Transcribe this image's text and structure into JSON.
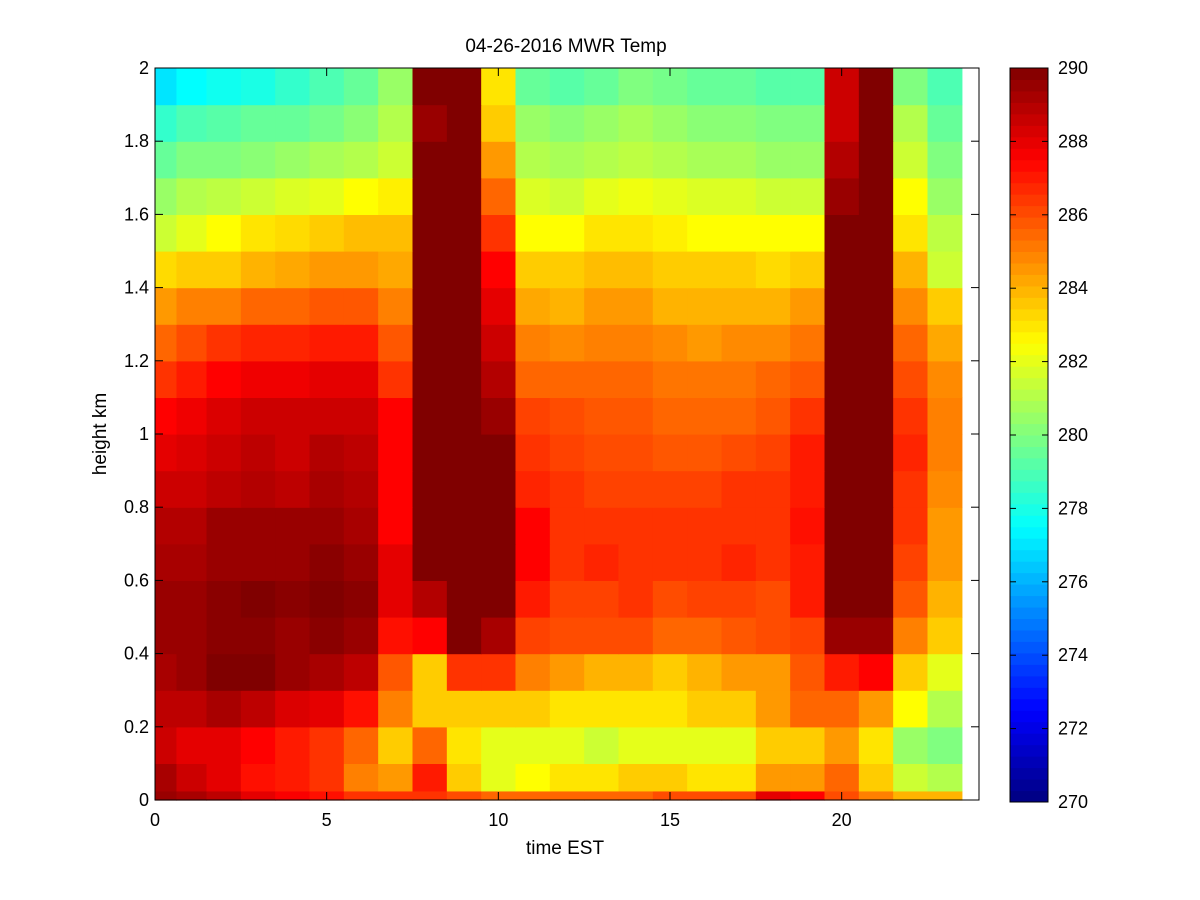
{
  "chart_data": {
    "type": "heatmap",
    "title": "04-26-2016 MWR Temp",
    "xlabel": "time EST",
    "ylabel": "height km",
    "xlim": [
      0,
      24
    ],
    "ylim": [
      0,
      2
    ],
    "xticks": [
      0,
      5,
      10,
      15,
      20
    ],
    "yticks": [
      0,
      0.2,
      0.4,
      0.6,
      0.8,
      1,
      1.2,
      1.4,
      1.6,
      1.8,
      2
    ],
    "colorbar": {
      "min": 270,
      "max": 290,
      "ticks": [
        270,
        272,
        274,
        276,
        278,
        280,
        282,
        284,
        286,
        288,
        290
      ],
      "colormap": "jet"
    },
    "x": [
      0.25,
      1,
      2,
      3,
      4,
      5,
      6,
      7,
      8,
      9,
      10,
      11,
      12,
      13,
      14,
      15,
      16,
      17,
      18,
      19,
      20,
      21,
      22,
      23
    ],
    "heights": [
      0,
      0.05,
      0.15,
      0.25,
      0.35,
      0.45,
      0.55,
      0.65,
      0.75,
      0.85,
      0.95,
      1.05,
      1.15,
      1.25,
      1.35,
      1.45,
      1.55,
      1.65,
      1.75,
      1.85,
      1.95
    ],
    "values": [
      [
        289.5,
        289.2,
        288.8,
        288.0,
        287.6,
        287.2,
        286.5,
        286.5,
        286.5,
        286.0,
        285.5,
        285.5,
        285.5,
        285.5,
        285.5,
        286.0,
        286.0,
        286.0,
        288.0,
        287.5,
        286.0,
        285.0,
        284.0,
        284.0
      ],
      [
        289.2,
        288.5,
        288.0,
        287.2,
        287.0,
        286.5,
        285.0,
        284.5,
        287.0,
        283.5,
        282.0,
        282.5,
        283.0,
        283.0,
        283.5,
        283.5,
        283.0,
        283.0,
        284.5,
        284.5,
        285.5,
        283.5,
        281.5,
        281.0
      ],
      [
        288.5,
        288.0,
        288.0,
        287.5,
        287.0,
        286.5,
        285.5,
        283.5,
        285.5,
        283.0,
        282.0,
        282.0,
        282.0,
        281.5,
        282.0,
        282.0,
        282.0,
        282.0,
        283.5,
        283.5,
        284.5,
        283.0,
        280.5,
        280.0
      ],
      [
        288.8,
        288.8,
        289.2,
        288.8,
        288.2,
        288.0,
        287.2,
        285.0,
        283.5,
        283.5,
        283.5,
        283.5,
        283.0,
        283.0,
        283.0,
        283.0,
        283.5,
        283.5,
        284.5,
        285.5,
        285.5,
        284.5,
        282.5,
        281.0
      ],
      [
        289.2,
        289.5,
        290.0,
        290.0,
        289.5,
        289.2,
        288.8,
        285.8,
        283.5,
        286.5,
        286.5,
        285.0,
        284.5,
        284.0,
        284.0,
        283.5,
        284.0,
        284.5,
        284.5,
        285.8,
        287.0,
        287.5,
        283.5,
        282.0
      ],
      [
        289.5,
        289.5,
        289.8,
        289.8,
        289.5,
        289.8,
        289.5,
        287.2,
        287.5,
        290.0,
        289.2,
        286.2,
        286.0,
        286.0,
        286.0,
        285.5,
        285.5,
        285.8,
        286.0,
        286.2,
        289.5,
        289.5,
        285.0,
        283.5
      ],
      [
        289.5,
        289.5,
        289.8,
        290.0,
        289.8,
        290.0,
        289.8,
        288.0,
        289.0,
        290.0,
        290.0,
        287.0,
        286.2,
        286.2,
        286.5,
        286.0,
        286.2,
        286.2,
        286.0,
        287.0,
        290.0,
        290.0,
        285.8,
        284.0
      ],
      [
        289.2,
        289.2,
        289.5,
        289.5,
        289.5,
        289.8,
        289.5,
        288.0,
        290.0,
        290.0,
        290.0,
        287.5,
        286.5,
        286.8,
        286.5,
        286.5,
        286.5,
        286.8,
        286.5,
        287.0,
        290.0,
        290.0,
        286.2,
        284.5
      ],
      [
        289.0,
        289.0,
        289.5,
        289.5,
        289.5,
        289.5,
        289.2,
        287.5,
        290.0,
        290.0,
        290.0,
        287.5,
        286.5,
        286.5,
        286.5,
        286.5,
        286.5,
        286.5,
        286.5,
        287.2,
        290.0,
        290.0,
        286.5,
        284.5
      ],
      [
        288.5,
        288.5,
        288.8,
        289.0,
        288.8,
        289.2,
        289.0,
        287.5,
        290.0,
        290.0,
        290.0,
        286.8,
        286.5,
        286.2,
        286.2,
        286.2,
        286.2,
        286.5,
        286.5,
        287.0,
        290.0,
        290.0,
        286.5,
        284.8
      ],
      [
        288.0,
        288.2,
        288.5,
        288.8,
        288.5,
        289.0,
        288.8,
        287.5,
        290.0,
        290.0,
        290.0,
        286.5,
        286.2,
        286.0,
        286.0,
        285.8,
        285.8,
        286.0,
        286.2,
        287.0,
        290.0,
        290.0,
        286.8,
        285.0
      ],
      [
        287.5,
        287.8,
        288.2,
        288.5,
        288.5,
        288.5,
        288.5,
        287.5,
        290.0,
        290.0,
        289.5,
        286.2,
        286.0,
        285.8,
        285.8,
        285.5,
        285.5,
        285.5,
        285.8,
        286.5,
        290.0,
        290.0,
        286.5,
        285.0
      ],
      [
        286.5,
        287.0,
        287.5,
        287.8,
        287.8,
        288.0,
        288.0,
        286.5,
        290.0,
        290.0,
        289.0,
        285.5,
        285.5,
        285.5,
        285.5,
        285.2,
        285.2,
        285.2,
        285.5,
        285.8,
        290.0,
        290.0,
        286.0,
        284.8
      ],
      [
        285.5,
        286.0,
        286.5,
        286.8,
        286.8,
        287.0,
        287.0,
        285.8,
        290.0,
        290.0,
        288.5,
        285.0,
        284.8,
        285.0,
        285.0,
        284.8,
        284.5,
        284.8,
        284.8,
        285.2,
        290.0,
        290.0,
        285.5,
        284.2
      ],
      [
        284.5,
        285.0,
        285.0,
        285.5,
        285.5,
        285.8,
        285.8,
        285.0,
        290.0,
        290.0,
        288.0,
        284.2,
        284.0,
        284.5,
        284.5,
        284.0,
        284.0,
        284.0,
        284.0,
        284.5,
        290.0,
        290.0,
        284.8,
        283.5
      ],
      [
        283.2,
        283.5,
        283.5,
        284.0,
        284.2,
        284.5,
        284.5,
        284.2,
        290.0,
        290.0,
        287.5,
        283.5,
        283.5,
        283.8,
        283.8,
        283.5,
        283.5,
        283.5,
        283.2,
        283.5,
        290.0,
        290.0,
        284.0,
        281.5
      ],
      [
        281.5,
        282.0,
        282.5,
        283.0,
        283.2,
        283.5,
        283.8,
        283.8,
        290.0,
        290.0,
        286.5,
        282.5,
        282.5,
        283.0,
        283.0,
        282.8,
        282.5,
        282.5,
        282.5,
        282.5,
        290.0,
        290.0,
        283.0,
        281.2
      ],
      [
        280.5,
        281.0,
        281.2,
        281.5,
        281.8,
        282.0,
        282.5,
        282.8,
        290.0,
        290.0,
        285.5,
        281.8,
        281.5,
        282.0,
        282.2,
        282.0,
        281.8,
        281.8,
        281.5,
        281.5,
        289.5,
        290.0,
        282.5,
        280.5
      ],
      [
        279.5,
        280.0,
        280.0,
        280.2,
        280.5,
        280.8,
        281.0,
        281.5,
        290.0,
        290.0,
        284.5,
        281.0,
        280.8,
        281.0,
        281.2,
        281.0,
        280.8,
        280.8,
        280.5,
        280.5,
        289.0,
        290.0,
        281.5,
        280.0
      ],
      [
        278.5,
        279.0,
        279.2,
        279.5,
        279.5,
        279.8,
        280.2,
        281.0,
        289.5,
        290.0,
        283.5,
        280.5,
        280.2,
        280.5,
        280.8,
        280.5,
        280.2,
        280.2,
        280.0,
        280.0,
        288.5,
        290.0,
        281.0,
        279.5
      ],
      [
        277.0,
        277.5,
        277.8,
        278.0,
        278.5,
        279.0,
        279.5,
        280.5,
        290.0,
        290.0,
        283.0,
        279.5,
        279.2,
        279.5,
        280.0,
        279.8,
        279.5,
        279.5,
        279.2,
        279.2,
        288.5,
        290.0,
        280.0,
        279.0
      ]
    ]
  }
}
